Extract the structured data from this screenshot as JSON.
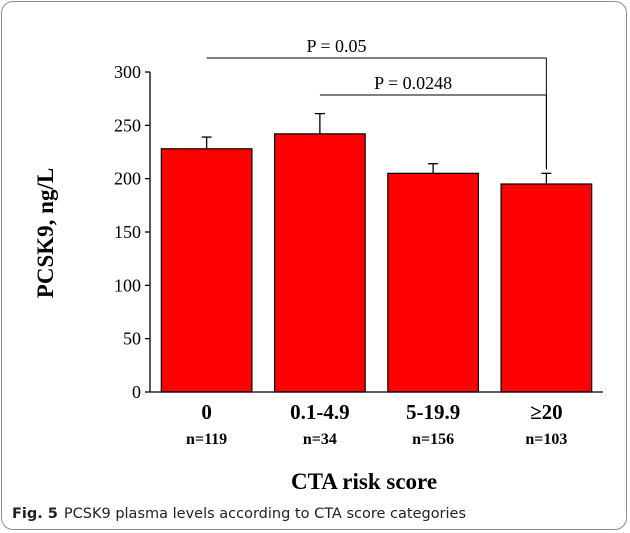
{
  "chart_data": {
    "type": "bar",
    "categories": [
      "0",
      "0.1-4.9",
      "5-19.9",
      "≥20"
    ],
    "sample_sizes": [
      "n=119",
      "n=34",
      "n=156",
      "n=103"
    ],
    "values": [
      228,
      242,
      205,
      195
    ],
    "error_plus": [
      11,
      19,
      9,
      10
    ],
    "xlabel": "CTA risk score",
    "ylabel": "PCSK9, ng/L",
    "ylim": [
      0,
      300
    ],
    "yticks": [
      0,
      50,
      100,
      150,
      200,
      250,
      300
    ],
    "bar_color": "#ff0000",
    "grid": false,
    "significance": [
      {
        "label": "P = 0.05",
        "from": 0,
        "to": 3
      },
      {
        "label": "P = 0.0248",
        "from": 1,
        "to": 3
      }
    ]
  },
  "caption": {
    "label": "Fig. 5",
    "text": "PCSK9 plasma levels according to CTA score categories"
  }
}
